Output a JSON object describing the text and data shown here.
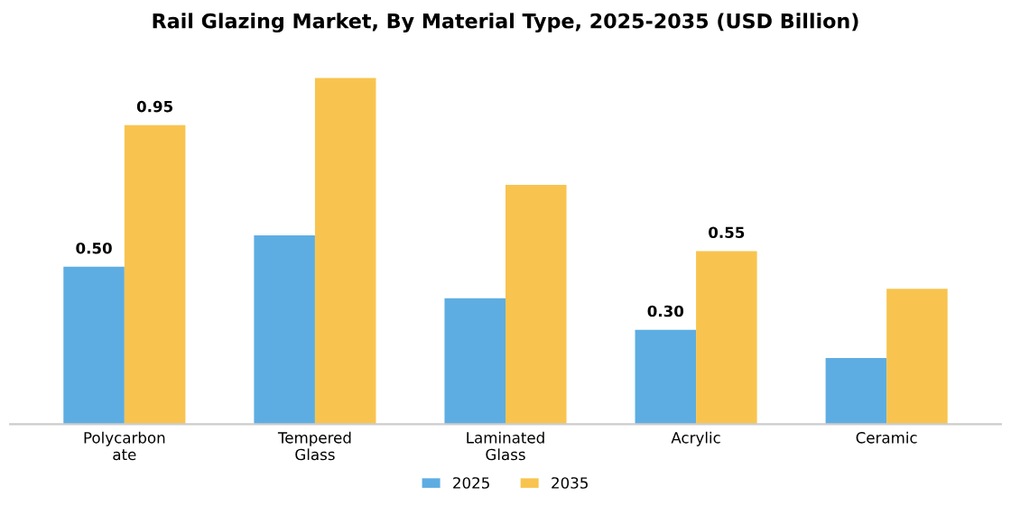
{
  "chart_data": {
    "type": "bar",
    "title": "Rail Glazing Market, By Material Type, 2025-2035 (USD Billion)",
    "categories": [
      "Polycarbon\nate",
      "Tempered\nGlass",
      "Laminated\nGlass",
      "Acrylic",
      "Ceramic"
    ],
    "series": [
      {
        "name": "2025",
        "color": "#5dade2",
        "values": [
          0.5,
          0.6,
          0.4,
          0.3,
          0.21
        ],
        "value_labels": [
          "0.50",
          null,
          null,
          "0.30",
          null
        ]
      },
      {
        "name": "2035",
        "color": "#f8c44f",
        "values": [
          0.95,
          1.1,
          0.76,
          0.55,
          0.43
        ],
        "value_labels": [
          "0.95",
          null,
          null,
          "0.55",
          null
        ]
      }
    ],
    "legend": "bottom",
    "grid": false
  }
}
